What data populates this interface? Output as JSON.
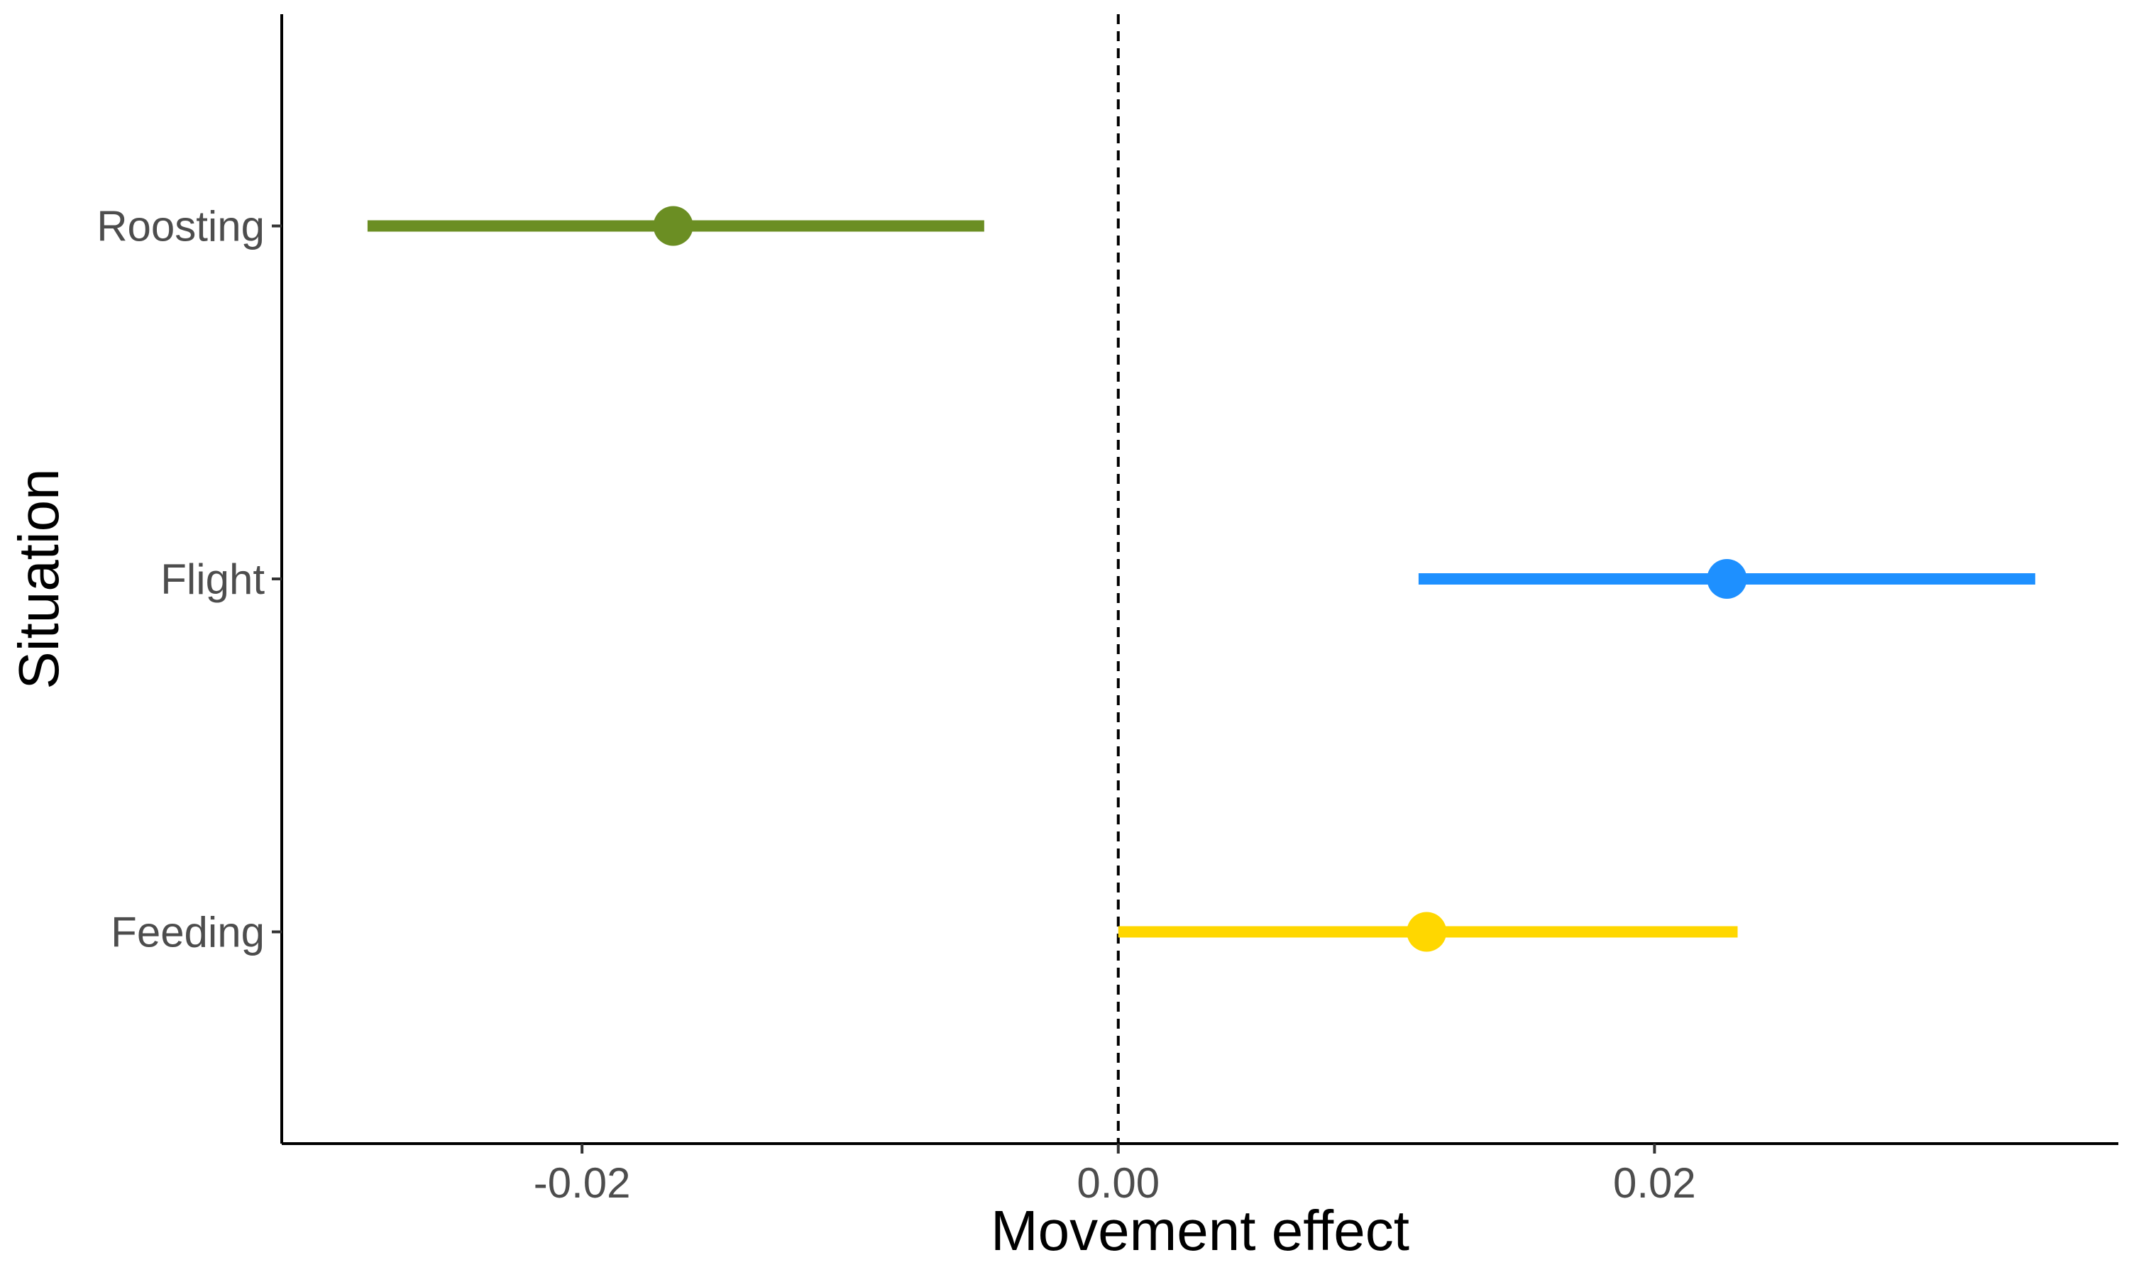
{
  "chart_data": {
    "type": "forest",
    "title": "",
    "xlabel": "Movement effect",
    "ylabel": "Situation",
    "xlim": [
      -0.0312,
      0.0373
    ],
    "x_ticks": [
      -0.02,
      0.0,
      0.02
    ],
    "x_tick_labels": [
      "-0.02",
      "0.00",
      "0.02"
    ],
    "categories": [
      "Feeding",
      "Flight",
      "Roosting"
    ],
    "reference_line": 0,
    "grid": false,
    "legend": "none",
    "series": [
      {
        "category": "Roosting",
        "estimate": -0.0166,
        "lower": -0.028,
        "upper": -0.005,
        "color": "#6b8e23"
      },
      {
        "category": "Flight",
        "estimate": 0.0227,
        "lower": 0.0112,
        "upper": 0.0342,
        "color": "#1e90ff"
      },
      {
        "category": "Feeding",
        "estimate": 0.0115,
        "lower": 0.0,
        "upper": 0.0231,
        "color": "#ffd700"
      }
    ]
  }
}
